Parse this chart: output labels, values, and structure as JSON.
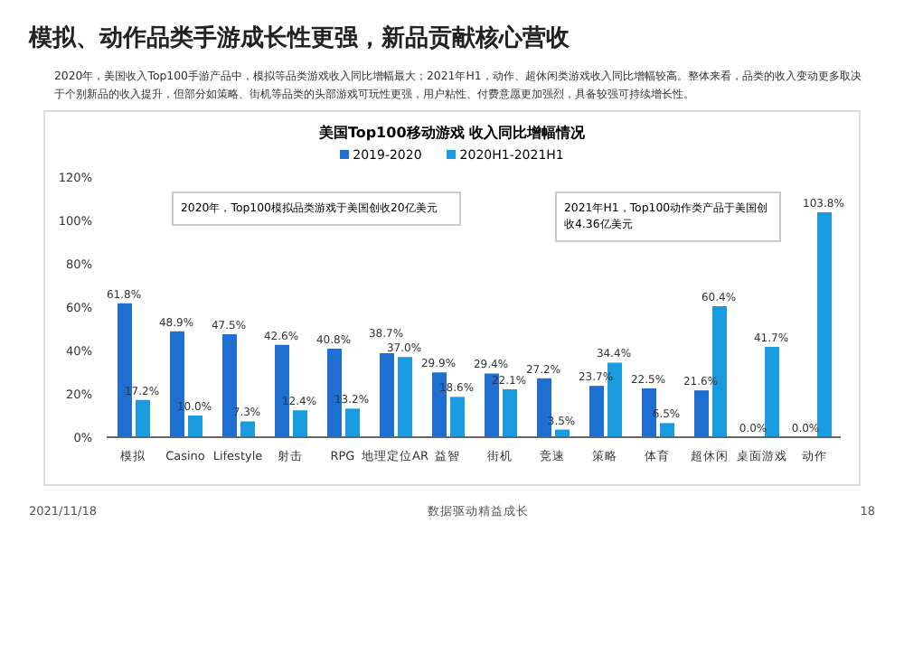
{
  "chart_data": {
    "type": "bar",
    "title": "模拟、动作品类手游成长性更强，新品贡献核心营收",
    "subtitle": "2020年，美国收入Top100手游产品中，模拟等品类游戏收入同比增幅最大；2021年H1，动作、超休闲类游戏收入同比增幅较高。整体来看，品类的收入变动更多取决于个别新品的收入提升，但部分如策略、街机等品类的头部游戏可玩性更强，用户粘性、付费意愿更加强烈，具备较强可持续增长性。",
    "legend_title": "美国Top100移动游戏 收入同比增幅情况",
    "categories": [
      "模拟",
      "Casino",
      "Lifestyle",
      "射击",
      "RPG",
      "地理定位AR",
      "益智",
      "街机",
      "竞速",
      "策略",
      "体育",
      "超休闲",
      "桌面游戏",
      "动作"
    ],
    "series": [
      {
        "name": "2019-2020",
        "color": "#1f6fd1",
        "values": [
          61.8,
          48.9,
          47.5,
          42.6,
          40.8,
          38.7,
          29.9,
          29.4,
          27.2,
          23.7,
          22.5,
          21.6,
          0.0,
          0.0
        ],
        "value_labels": [
          "61.8%",
          "48.9%",
          "47.5%",
          "42.6%",
          "40.8%",
          "38.7%",
          "29.9%",
          "29.4%",
          "27.2%",
          "23.7%",
          "22.5%",
          "21.6%",
          "0.0%",
          "0.0%"
        ]
      },
      {
        "name": "2020H1-2021H1",
        "color": "#1a9be0",
        "values": [
          17.2,
          10.0,
          7.3,
          12.4,
          13.2,
          37.0,
          18.6,
          22.1,
          3.5,
          34.4,
          6.5,
          60.4,
          41.7,
          103.8
        ],
        "value_labels": [
          "17.2%",
          "10.0%",
          "7.3%",
          "12.4%",
          "13.2%",
          "37.0%",
          "18.6%",
          "22.1%",
          "3.5%",
          "34.4%",
          "6.5%",
          "60.4%",
          "41.7%",
          "103.8%"
        ]
      }
    ],
    "ylim": [
      0,
      120
    ],
    "yticks": [
      {
        "value": 0,
        "label": "0%"
      },
      {
        "value": 20,
        "label": "20%"
      },
      {
        "value": 40,
        "label": "40%"
      },
      {
        "value": 60,
        "label": "60%"
      },
      {
        "value": 80,
        "label": "80%"
      },
      {
        "value": 100,
        "label": "100%"
      },
      {
        "value": 120,
        "label": "120%"
      }
    ],
    "grid": false,
    "legend": "top",
    "annotations": [
      "2020年，Top100模拟品类游戏于美国创收20亿美元",
      "2021年H1，Top100动作类产品于美国创收4.36亿美元",
      "2021/11/18",
      "数据驱动精益成长",
      "18"
    ]
  }
}
